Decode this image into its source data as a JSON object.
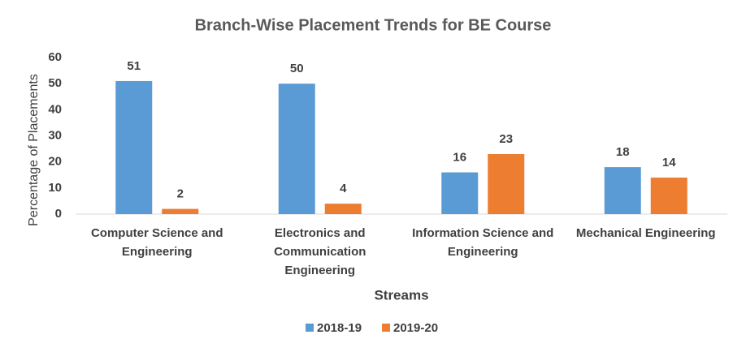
{
  "chart_data": {
    "type": "bar",
    "title": "Branch-Wise Placement Trends for BE Course",
    "x_label": "Streams",
    "y_label": "Percentage of Placements",
    "categories": [
      "Computer Science and Engineering",
      "Electronics and Communication Engineering",
      "Information Science and Engineering",
      "Mechanical Engineering"
    ],
    "series": [
      {
        "name": "2018-19",
        "color": "#5b9bd5",
        "values": [
          51,
          50,
          16,
          18
        ]
      },
      {
        "name": "2019-20",
        "color": "#ed7d31",
        "values": [
          2,
          4,
          23,
          14
        ]
      }
    ],
    "ylim": [
      0,
      60
    ],
    "yticks": [
      0,
      10,
      20,
      30,
      40,
      50,
      60
    ],
    "grid": false,
    "legend": "bottom"
  }
}
